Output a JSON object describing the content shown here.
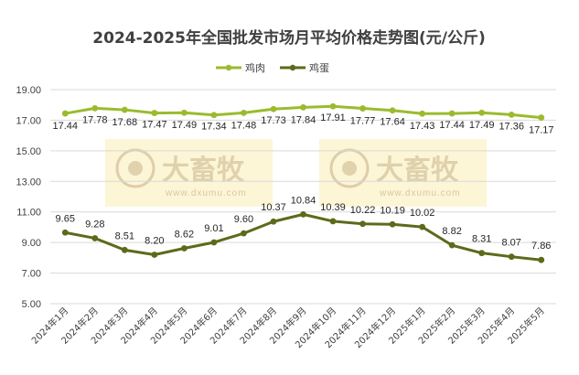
{
  "chart_data": {
    "type": "line",
    "title": "2024-2025年全国批发市场月平均价格走势图(元/公斤)",
    "categories": [
      "2024年1月",
      "2024年2月",
      "2024年3月",
      "2024年4月",
      "2024年5月",
      "2024年6月",
      "2024年7月",
      "2024年8月",
      "2024年9月",
      "2024年10月",
      "2024年11月",
      "2024年12月",
      "2025年1月",
      "2025年2月",
      "2025年3月",
      "2025年4月",
      "2025年5月"
    ],
    "series": [
      {
        "name": "鸡肉",
        "color": "#9bbb2e",
        "values": [
          17.44,
          17.78,
          17.68,
          17.47,
          17.49,
          17.34,
          17.48,
          17.73,
          17.84,
          17.91,
          17.77,
          17.64,
          17.43,
          17.44,
          17.49,
          17.36,
          17.17
        ],
        "labels": [
          "17.44",
          "17.78",
          "17.68",
          "17.47",
          "17.49",
          "17.34",
          "17.48",
          "17.73",
          "17.84",
          "17.91",
          "17.77",
          "17.64",
          "17.43",
          "17.44",
          "17.49",
          "17.36",
          "17.17"
        ]
      },
      {
        "name": "鸡蛋",
        "color": "#5b6b1a",
        "values": [
          9.65,
          9.28,
          8.51,
          8.2,
          8.62,
          9.01,
          9.6,
          10.37,
          10.84,
          10.39,
          10.22,
          10.19,
          10.02,
          8.82,
          8.31,
          8.07,
          7.86
        ],
        "labels": [
          "9.65",
          "9.28",
          "8.51",
          "8.20",
          "8.62",
          "9.01",
          "9.60",
          "10.37",
          "10.84",
          "10.39",
          "10.22",
          "10.19",
          "10.02",
          "8.82",
          "8.31",
          "8.07",
          "7.86"
        ]
      }
    ],
    "ylim": [
      5,
      19
    ],
    "yticks": [
      "5.00",
      "7.00",
      "9.00",
      "11.00",
      "13.00",
      "15.00",
      "17.00",
      "19.00"
    ],
    "grid": true,
    "legend": "top-left",
    "xlabel": "",
    "ylabel": ""
  },
  "watermark": {
    "text": "大畜牧",
    "sub": "www.dxumu.com"
  }
}
